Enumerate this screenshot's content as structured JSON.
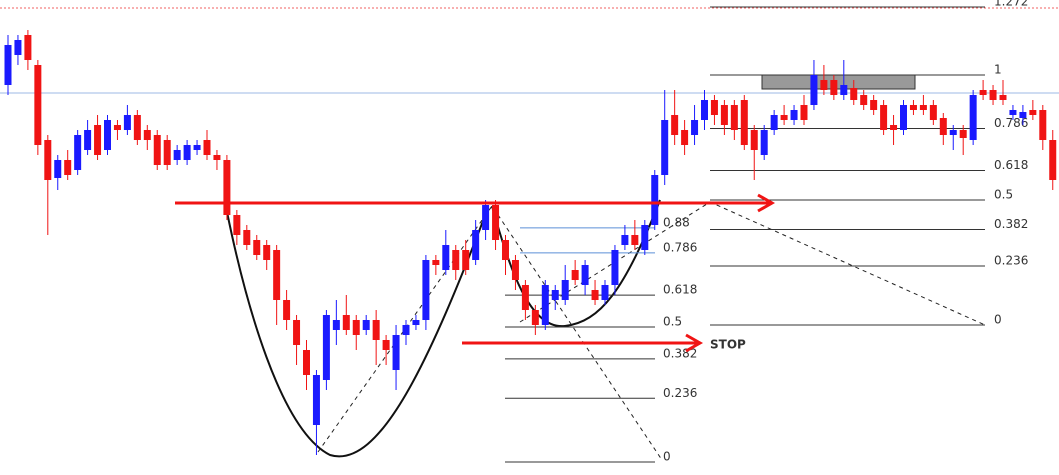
{
  "chart_data": {
    "type": "candlestick",
    "ylim": [
      0,
      475
    ],
    "up_color": "#1a1aff",
    "down_color": "#f01414",
    "candles": [
      [
        390,
        440,
        380,
        430
      ],
      [
        420,
        440,
        410,
        435
      ],
      [
        440,
        445,
        405,
        415
      ],
      [
        410,
        415,
        320,
        330
      ],
      [
        335,
        340,
        240,
        295
      ],
      [
        297,
        320,
        285,
        315
      ],
      [
        315,
        325,
        295,
        300
      ],
      [
        305,
        345,
        300,
        340
      ],
      [
        325,
        355,
        320,
        345
      ],
      [
        350,
        360,
        315,
        320
      ],
      [
        325,
        360,
        320,
        355
      ],
      [
        350,
        355,
        335,
        345
      ],
      [
        345,
        370,
        340,
        360
      ],
      [
        360,
        365,
        330,
        335
      ],
      [
        345,
        350,
        325,
        335
      ],
      [
        340,
        345,
        305,
        310
      ],
      [
        335,
        340,
        305,
        310
      ],
      [
        315,
        330,
        310,
        325
      ],
      [
        315,
        335,
        310,
        330
      ],
      [
        325,
        335,
        320,
        330
      ],
      [
        335,
        345,
        315,
        320
      ],
      [
        320,
        325,
        305,
        315
      ],
      [
        315,
        320,
        255,
        260
      ],
      [
        260,
        265,
        230,
        240
      ],
      [
        245,
        250,
        225,
        230
      ],
      [
        235,
        240,
        215,
        220
      ],
      [
        230,
        235,
        205,
        215
      ],
      [
        225,
        230,
        150,
        175
      ],
      [
        175,
        185,
        145,
        155
      ],
      [
        155,
        160,
        110,
        130
      ],
      [
        125,
        135,
        85,
        100
      ],
      [
        50,
        105,
        20,
        100
      ],
      [
        95,
        165,
        85,
        160
      ],
      [
        145,
        175,
        130,
        155
      ],
      [
        160,
        180,
        140,
        145
      ],
      [
        155,
        160,
        125,
        140
      ],
      [
        145,
        160,
        140,
        155
      ],
      [
        155,
        165,
        110,
        135
      ],
      [
        135,
        140,
        110,
        125
      ],
      [
        105,
        150,
        85,
        140
      ],
      [
        140,
        155,
        130,
        150
      ],
      [
        150,
        160,
        145,
        155
      ],
      [
        155,
        220,
        145,
        215
      ],
      [
        215,
        220,
        200,
        210
      ],
      [
        205,
        245,
        200,
        230
      ],
      [
        225,
        230,
        195,
        205
      ],
      [
        225,
        235,
        200,
        205
      ],
      [
        215,
        255,
        210,
        245
      ],
      [
        245,
        275,
        235,
        270
      ],
      [
        270,
        275,
        225,
        235
      ],
      [
        235,
        240,
        200,
        215
      ],
      [
        215,
        220,
        185,
        195
      ],
      [
        190,
        195,
        155,
        165
      ],
      [
        165,
        170,
        140,
        150
      ],
      [
        150,
        195,
        145,
        190
      ],
      [
        175,
        190,
        165,
        185
      ],
      [
        175,
        210,
        170,
        195
      ],
      [
        205,
        215,
        190,
        195
      ],
      [
        190,
        215,
        180,
        210
      ],
      [
        185,
        195,
        170,
        175
      ],
      [
        175,
        195,
        170,
        190
      ],
      [
        190,
        230,
        180,
        225
      ],
      [
        230,
        250,
        225,
        240
      ],
      [
        240,
        255,
        225,
        230
      ],
      [
        225,
        255,
        220,
        250
      ],
      [
        250,
        305,
        245,
        300
      ],
      [
        300,
        385,
        290,
        355
      ],
      [
        360,
        385,
        330,
        340
      ],
      [
        345,
        355,
        320,
        330
      ],
      [
        340,
        370,
        330,
        355
      ],
      [
        355,
        385,
        345,
        375
      ],
      [
        375,
        380,
        350,
        360
      ],
      [
        370,
        375,
        340,
        350
      ],
      [
        370,
        375,
        335,
        345
      ],
      [
        375,
        380,
        325,
        330
      ],
      [
        345,
        350,
        295,
        325
      ],
      [
        320,
        350,
        315,
        345
      ],
      [
        345,
        365,
        340,
        360
      ],
      [
        360,
        370,
        350,
        355
      ],
      [
        355,
        370,
        350,
        365
      ],
      [
        370,
        380,
        350,
        355
      ],
      [
        370,
        415,
        365,
        400
      ],
      [
        395,
        410,
        380,
        385
      ],
      [
        395,
        400,
        375,
        380
      ],
      [
        380,
        415,
        375,
        390
      ],
      [
        387,
        395,
        370,
        375
      ],
      [
        380,
        385,
        365,
        370
      ],
      [
        375,
        380,
        360,
        365
      ],
      [
        370,
        375,
        340,
        345
      ],
      [
        350,
        360,
        330,
        345
      ],
      [
        345,
        375,
        340,
        370
      ],
      [
        370,
        375,
        360,
        365
      ],
      [
        370,
        380,
        360,
        365
      ],
      [
        370,
        375,
        350,
        355
      ],
      [
        357,
        362,
        330,
        340
      ],
      [
        340,
        350,
        325,
        345
      ],
      [
        345,
        350,
        320,
        337
      ],
      [
        335,
        385,
        330,
        380
      ],
      [
        385,
        395,
        375,
        380
      ],
      [
        385,
        390,
        370,
        375
      ],
      [
        380,
        395,
        370,
        375
      ],
      [
        360,
        370,
        355,
        365
      ],
      [
        357,
        370,
        350,
        363
      ],
      [
        365,
        375,
        355,
        360
      ],
      [
        365,
        370,
        325,
        335
      ],
      [
        335,
        345,
        285,
        295
      ]
    ],
    "fib_sets": [
      {
        "low": 150,
        "high": 400,
        "color": "#333333",
        "levels": [
          1.272,
          1,
          0.786,
          0.618,
          0.5,
          0.382,
          0.236,
          0
        ]
      },
      {
        "low": 13,
        "high": 283,
        "color": "#333333",
        "levels": [
          0.618,
          0.5,
          0.382,
          0.236,
          0
        ]
      },
      {
        "low": 13,
        "high": 279,
        "color": "#5b8fd6",
        "levels": [
          0.88,
          0.786
        ]
      }
    ],
    "lines": [
      {
        "value": 382,
        "color": "#9db8e6"
      },
      {
        "value": 467,
        "color": "#f06060"
      }
    ],
    "arrows": [
      {
        "value": 272,
        "color": "#f01414"
      },
      {
        "value": 132,
        "color": "#f01414",
        "label": "STOP"
      }
    ]
  }
}
